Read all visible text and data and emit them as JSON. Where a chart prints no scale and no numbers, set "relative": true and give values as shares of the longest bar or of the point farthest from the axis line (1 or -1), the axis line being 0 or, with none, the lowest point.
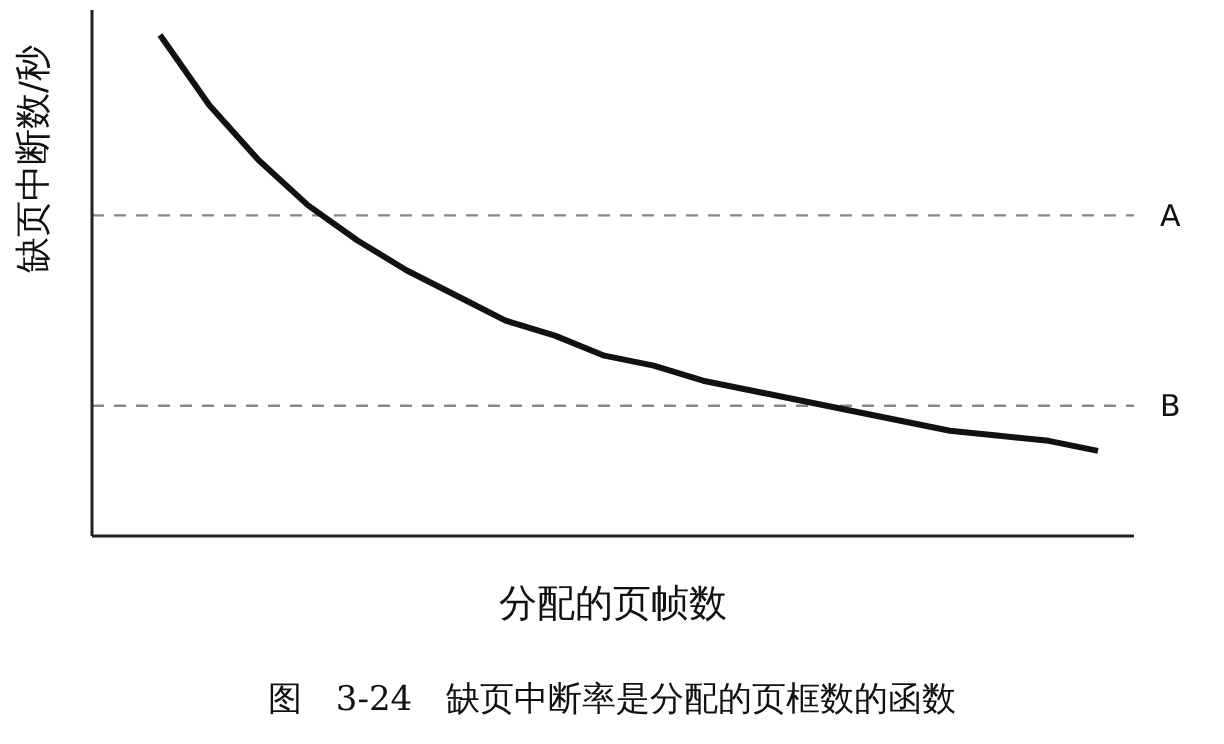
{
  "chart_data": {
    "type": "line",
    "relative": true,
    "xlabel": "分配的页帧数",
    "ylabel": "缺页中断数/秒",
    "categories": [
      null,
      null,
      null,
      null,
      null,
      null,
      null,
      null,
      null,
      null,
      null,
      null,
      null,
      null,
      null,
      null,
      null,
      null,
      null,
      null
    ],
    "series": [
      {
        "color": "#111111",
        "values": [
          1.0,
          0.86,
          0.75,
          0.66,
          0.59,
          0.53,
          0.48,
          0.43,
          0.4,
          0.36,
          0.34,
          0.31,
          0.29,
          0.27,
          0.25,
          0.23,
          0.21,
          0.2,
          0.19,
          0.17
        ]
      }
    ],
    "ref_lines": [
      {
        "axis": "y",
        "value": 0.64,
        "label": "A",
        "color": "#888888",
        "line_style": "dashed"
      },
      {
        "axis": "y",
        "value": 0.26,
        "label": "B",
        "color": "#888888",
        "line_style": "dashed"
      }
    ],
    "annotations": [
      "图　3-24　缺页中断率是分配的页框数的函数"
    ],
    "grid": false,
    "legend": false
  }
}
